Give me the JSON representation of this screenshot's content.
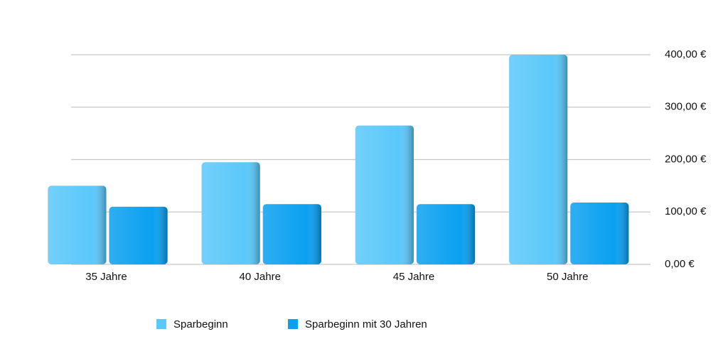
{
  "chart_data": {
    "type": "bar",
    "categories": [
      "35 Jahre",
      "40 Jahre",
      "45 Jahre",
      "50 Jahre"
    ],
    "series": [
      {
        "name": "Sparbeginn",
        "color": "#5ac8fa",
        "values": [
          150,
          195,
          265,
          400
        ]
      },
      {
        "name": "Sparbeginn mit 30 Jahren",
        "color": "#0aa0f0",
        "values": [
          110,
          115,
          115,
          118
        ]
      }
    ],
    "ylim": [
      0,
      400
    ],
    "yticks": [
      {
        "value": 0,
        "label": "0,00 €"
      },
      {
        "value": 100,
        "label": "100,00 €"
      },
      {
        "value": 200,
        "label": "200,00 €"
      },
      {
        "value": 300,
        "label": "300,00 €"
      },
      {
        "value": 400,
        "label": "400,00 €"
      }
    ],
    "grid": true
  }
}
